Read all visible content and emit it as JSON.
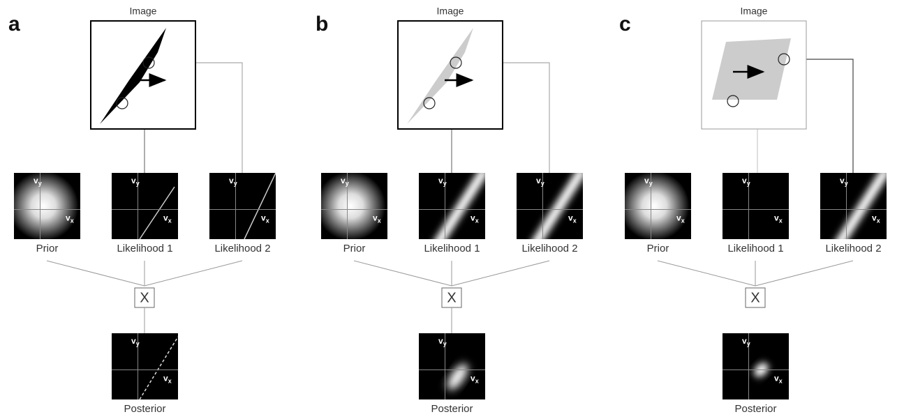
{
  "panels": [
    {
      "label": "a",
      "image_title": "Image",
      "operator": "X",
      "boxes": [
        {
          "title": "Prior",
          "y_axis": {
            "symbol": "v",
            "subscript": "y"
          },
          "x_axis": {
            "symbol": "v",
            "subscript": "x"
          }
        },
        {
          "title": "Likelihood 1",
          "y_axis": {
            "symbol": "v",
            "subscript": "y"
          },
          "x_axis": {
            "symbol": "v",
            "subscript": "x"
          }
        },
        {
          "title": "Likelihood 2",
          "y_axis": {
            "symbol": "v",
            "subscript": "y"
          },
          "x_axis": {
            "symbol": "v",
            "subscript": "x"
          }
        },
        {
          "title": "Posterior",
          "y_axis": {
            "symbol": "v",
            "subscript": "y"
          },
          "x_axis": {
            "symbol": "v",
            "subscript": "x"
          }
        }
      ]
    },
    {
      "label": "b",
      "image_title": "Image",
      "operator": "X",
      "boxes": [
        {
          "title": "Prior",
          "y_axis": {
            "symbol": "v",
            "subscript": "y"
          },
          "x_axis": {
            "symbol": "v",
            "subscript": "x"
          }
        },
        {
          "title": "Likelihood 1",
          "y_axis": {
            "symbol": "v",
            "subscript": "y"
          },
          "x_axis": {
            "symbol": "v",
            "subscript": "x"
          }
        },
        {
          "title": "Likelihood 2",
          "y_axis": {
            "symbol": "v",
            "subscript": "y"
          },
          "x_axis": {
            "symbol": "v",
            "subscript": "x"
          }
        },
        {
          "title": "Posterior",
          "y_axis": {
            "symbol": "v",
            "subscript": "y"
          },
          "x_axis": {
            "symbol": "v",
            "subscript": "x"
          }
        }
      ]
    },
    {
      "label": "c",
      "image_title": "Image",
      "operator": "X",
      "boxes": [
        {
          "title": "Prior",
          "y_axis": {
            "symbol": "v",
            "subscript": "y"
          },
          "x_axis": {
            "symbol": "v",
            "subscript": "x"
          }
        },
        {
          "title": "Likelihood 1",
          "y_axis": {
            "symbol": "v",
            "subscript": "y"
          },
          "x_axis": {
            "symbol": "v",
            "subscript": "x"
          }
        },
        {
          "title": "Likelihood 2",
          "y_axis": {
            "symbol": "v",
            "subscript": "y"
          },
          "x_axis": {
            "symbol": "v",
            "subscript": "x"
          }
        },
        {
          "title": "Posterior",
          "y_axis": {
            "symbol": "v",
            "subscript": "y"
          },
          "x_axis": {
            "symbol": "v",
            "subscript": "x"
          }
        }
      ]
    }
  ]
}
